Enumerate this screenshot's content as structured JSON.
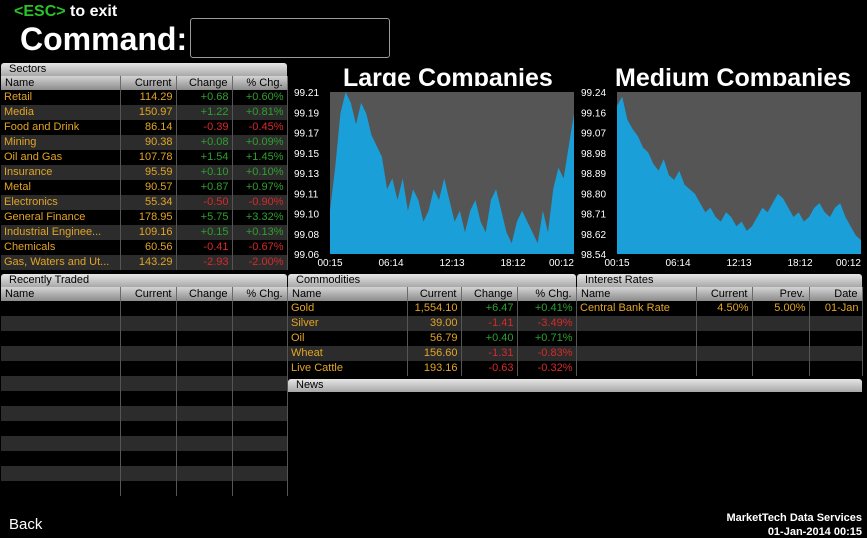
{
  "header": {
    "esc_key": "<ESC>",
    "esc_text": " to exit",
    "command_label": "Command:",
    "command_value": ""
  },
  "sectors": {
    "title": "Sectors",
    "columns": [
      "Name",
      "Current",
      "Change",
      "% Chg."
    ],
    "rows": [
      {
        "name": "Retail",
        "current": "114.29",
        "change": "+0.68",
        "pct": "+0.60%",
        "dir": "up"
      },
      {
        "name": "Media",
        "current": "150.97",
        "change": "+1.22",
        "pct": "+0.81%",
        "dir": "up"
      },
      {
        "name": "Food and Drink",
        "current": "86.14",
        "change": "-0.39",
        "pct": "-0.45%",
        "dir": "down"
      },
      {
        "name": "Mining",
        "current": "90.38",
        "change": "+0.08",
        "pct": "+0.09%",
        "dir": "up"
      },
      {
        "name": "Oil and Gas",
        "current": "107.78",
        "change": "+1.54",
        "pct": "+1.45%",
        "dir": "up"
      },
      {
        "name": "Insurance",
        "current": "95.59",
        "change": "+0.10",
        "pct": "+0.10%",
        "dir": "up"
      },
      {
        "name": "Metal",
        "current": "90.57",
        "change": "+0.87",
        "pct": "+0.97%",
        "dir": "up"
      },
      {
        "name": "Electronics",
        "current": "55.34",
        "change": "-0.50",
        "pct": "-0.90%",
        "dir": "down"
      },
      {
        "name": "General Finance",
        "current": "178.95",
        "change": "+5.75",
        "pct": "+3.32%",
        "dir": "up"
      },
      {
        "name": "Industrial Enginee...",
        "current": "109.16",
        "change": "+0.15",
        "pct": "+0.13%",
        "dir": "up"
      },
      {
        "name": "Chemicals",
        "current": "60.56",
        "change": "-0.41",
        "pct": "-0.67%",
        "dir": "down"
      },
      {
        "name": "Gas, Waters and Ut...",
        "current": "143.29",
        "change": "-2.93",
        "pct": "-2.00%",
        "dir": "down"
      }
    ]
  },
  "recently_traded": {
    "title": "Recently Traded",
    "columns": [
      "Name",
      "Current",
      "Change",
      "% Chg."
    ],
    "rows": []
  },
  "commodities": {
    "title": "Commodities",
    "columns": [
      "Name",
      "Current",
      "Change",
      "% Chg."
    ],
    "rows": [
      {
        "name": "Gold",
        "current": "1,554.10",
        "change": "+6.47",
        "pct": "+0.41%",
        "dir": "up"
      },
      {
        "name": "Silver",
        "current": "39.00",
        "change": "-1.41",
        "pct": "-3.49%",
        "dir": "down"
      },
      {
        "name": "Oil",
        "current": "56.79",
        "change": "+0.40",
        "pct": "+0.71%",
        "dir": "up"
      },
      {
        "name": "Wheat",
        "current": "156.60",
        "change": "-1.31",
        "pct": "-0.83%",
        "dir": "down"
      },
      {
        "name": "Live Cattle",
        "current": "193.16",
        "change": "-0.63",
        "pct": "-0.32%",
        "dir": "down"
      }
    ]
  },
  "interest_rates": {
    "title": "Interest Rates",
    "columns": [
      "Name",
      "Current",
      "Prev.",
      "Date"
    ],
    "rows": [
      {
        "name": "Central Bank Rate",
        "current": "4.50%",
        "prev": "5.00%",
        "date": "01-Jan"
      }
    ]
  },
  "news": {
    "title": "News"
  },
  "footer": {
    "back_label": "Back",
    "provider": "MarketTech Data Services",
    "datetime": "01-Jan-2014 00:15"
  },
  "colors": {
    "chart_fill": "#1a9fd8",
    "chart_bg": "#555555",
    "positive": "#2ea02e",
    "negative": "#d62a2a",
    "name_text": "#e3a424",
    "esc_key": "#29c229"
  },
  "chart_data": [
    {
      "type": "area",
      "title": "Large Companies",
      "xlabel": "",
      "ylabel": "",
      "x_ticks": [
        "00:15",
        "06:14",
        "12:13",
        "18:12",
        "00:12"
      ],
      "y_ticks": [
        "99.21",
        "99.19",
        "99.17",
        "99.15",
        "99.13",
        "99.11",
        "99.10",
        "99.08",
        "99.06"
      ],
      "ylim": [
        99.06,
        99.21
      ],
      "grid": false,
      "series": [
        {
          "values": [
            99.1,
            99.14,
            99.19,
            99.21,
            99.2,
            99.18,
            99.2,
            99.19,
            99.17,
            99.16,
            99.15,
            99.12,
            99.13,
            99.11,
            99.13,
            99.1,
            99.12,
            99.11,
            99.09,
            99.1,
            99.12,
            99.11,
            99.13,
            99.11,
            99.09,
            99.1,
            99.08,
            99.1,
            99.11,
            99.09,
            99.08,
            99.11,
            99.12,
            99.1,
            99.08,
            99.07,
            99.09,
            99.1,
            99.09,
            99.08,
            99.07,
            99.1,
            99.08,
            99.12,
            99.14,
            99.13,
            99.16,
            99.19
          ]
        }
      ]
    },
    {
      "type": "area",
      "title": "Medium Companies",
      "xlabel": "",
      "ylabel": "",
      "x_ticks": [
        "00:15",
        "06:14",
        "12:13",
        "18:12",
        "00:12"
      ],
      "y_ticks": [
        "99.24",
        "99.16",
        "99.07",
        "98.98",
        "98.89",
        "98.80",
        "98.71",
        "98.62",
        "98.54"
      ],
      "ylim": [
        98.54,
        99.24
      ],
      "grid": false,
      "series": [
        {
          "values": [
            99.18,
            99.22,
            99.12,
            99.08,
            99.05,
            99.0,
            98.98,
            98.93,
            98.9,
            98.95,
            98.88,
            98.86,
            98.9,
            98.84,
            98.82,
            98.8,
            98.76,
            98.72,
            98.74,
            98.7,
            98.68,
            98.72,
            98.7,
            98.66,
            98.68,
            98.64,
            98.66,
            98.7,
            98.74,
            98.72,
            98.76,
            98.8,
            98.78,
            98.74,
            98.7,
            98.72,
            98.68,
            98.7,
            98.74,
            98.76,
            98.72,
            98.7,
            98.74,
            98.76,
            98.7,
            98.66,
            98.62,
            98.6
          ]
        }
      ]
    }
  ]
}
